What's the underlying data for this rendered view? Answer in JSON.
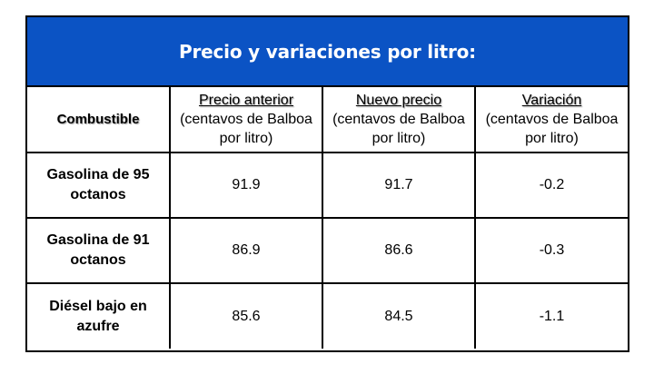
{
  "title": "Precio y variaciones por litro:",
  "columns": [
    {
      "main": "Combustible",
      "unit": ""
    },
    {
      "main": "Precio anterior",
      "unit": "(centavos de Balboa por litro)"
    },
    {
      "main": "Nuevo precio",
      "unit": "(centavos de Balboa por litro)"
    },
    {
      "main": "Variación",
      "unit": "(centavos de Balboa por litro)"
    }
  ],
  "rows": [
    {
      "fuel": "Gasolina de 95 octanos",
      "previous": "91.9",
      "new": "91.7",
      "variation": "-0.2"
    },
    {
      "fuel": "Gasolina de 91 octanos",
      "previous": "86.9",
      "new": "86.6",
      "variation": "-0.3"
    },
    {
      "fuel": "Diésel bajo en azufre",
      "previous": "85.6",
      "new": "84.5",
      "variation": "-1.1"
    }
  ],
  "colors": {
    "title_background": "#0b53c4",
    "title_text": "#ffffff",
    "border": "#000000"
  }
}
